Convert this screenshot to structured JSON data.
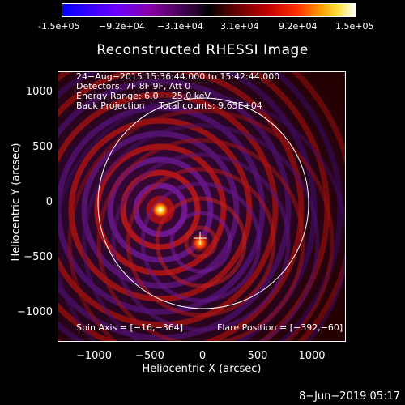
{
  "colorbar": {
    "ticks": [
      "-1.5e+05",
      "−9.2e+04",
      "−3.1e+04",
      "3.1e+04",
      "9.2e+04",
      "1.5e+05"
    ]
  },
  "title": "Reconstructed RHESSI Image",
  "axes": {
    "xlabel": "Heliocentric X (arcsec)",
    "ylabel": "Heliocentric Y (arcsec)",
    "xticks": [
      "−1000",
      "−500",
      "0",
      "500",
      "1000"
    ],
    "yticks": [
      "1000",
      "500",
      "0",
      "−500",
      "−1000"
    ]
  },
  "info": {
    "time_range": "24−Aug−2015 15:36:44.000 to 15:42:44.000",
    "detectors": "Detectors: 7F 8F 9F, Att 0",
    "energy": "Energy Range: 6.0 − 25.0 keV",
    "method": "Back Projection",
    "counts": "Total counts: 9.65E+04",
    "spin_axis": "Spin Axis = [−16,−364]",
    "flare_position": "Flare Position = [−392,−60]"
  },
  "footer": "8−Jun−2019 05:17",
  "colors": {
    "background": "#000000",
    "text": "#ffffff"
  }
}
